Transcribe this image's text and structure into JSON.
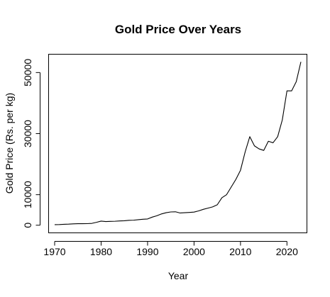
{
  "chart_data": {
    "type": "line",
    "title": "Gold Price Over Years",
    "xlabel": "Year",
    "ylabel": "Gold Price (Rs. per kg)",
    "xlim": [
      1968.7,
      2024.3
    ],
    "ylim": [
      -2500,
      56000
    ],
    "xticks": [
      1970,
      1980,
      1990,
      2000,
      2010,
      2020
    ],
    "yticks": [
      0,
      10000,
      30000,
      50000
    ],
    "grid": false,
    "series": [
      {
        "name": "",
        "color": "#000000",
        "x": [
          1970,
          1971,
          1972,
          1973,
          1974,
          1975,
          1976,
          1977,
          1978,
          1979,
          1980,
          1981,
          1982,
          1983,
          1984,
          1985,
          1986,
          1987,
          1988,
          1989,
          1990,
          1991,
          1992,
          1993,
          1994,
          1995,
          1996,
          1997,
          1998,
          1999,
          2000,
          2001,
          2002,
          2003,
          2004,
          2005,
          2006,
          2007,
          2008,
          2009,
          2010,
          2011,
          2012,
          2013,
          2014,
          2015,
          2016,
          2017,
          2018,
          2019,
          2020,
          2021,
          2022,
          2023
        ],
        "y": [
          180,
          210,
          300,
          350,
          450,
          500,
          500,
          520,
          600,
          950,
          1350,
          1200,
          1250,
          1300,
          1400,
          1450,
          1600,
          1650,
          1800,
          1950,
          2050,
          2650,
          3100,
          3700,
          4100,
          4350,
          4400,
          4000,
          4100,
          4200,
          4300,
          4700,
          5200,
          5600,
          6000,
          6700,
          9000,
          10000,
          12500,
          15000,
          18000,
          24000,
          29000,
          26000,
          25000,
          24500,
          27500,
          27000,
          29000,
          34500,
          44000,
          44000,
          47000,
          53500
        ]
      }
    ]
  }
}
